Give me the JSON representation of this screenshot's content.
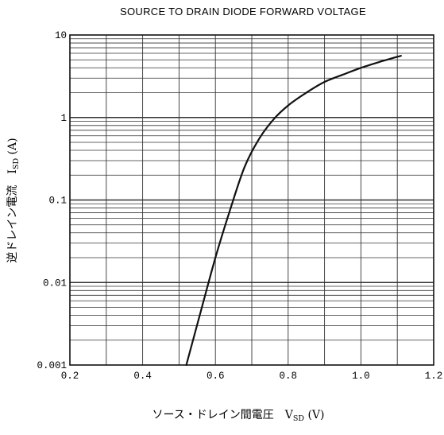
{
  "chart_data": {
    "type": "line",
    "title": "SOURCE TO DRAIN DIODE FORWARD VOLTAGE",
    "xlabel": {
      "main": "ソース・ドレイン間電圧　V",
      "sub": "SD",
      "unit": " (V)"
    },
    "ylabel": {
      "main": "逆ドレイン電流　I",
      "sub": "SD",
      "unit": " (A)"
    },
    "xlim": [
      0.2,
      1.2
    ],
    "ylim": [
      0.001,
      10
    ],
    "yscale": "log",
    "grid": true,
    "x_ticks": [
      0.2,
      0.4,
      0.6,
      0.8,
      1.0,
      1.2
    ],
    "x_tick_labels": [
      "0.2",
      "0.4",
      "0.6",
      "0.8",
      "1.0",
      "1.2"
    ],
    "y_ticks": [
      0.001,
      0.01,
      0.1,
      1,
      10
    ],
    "y_tick_labels": [
      "0.001",
      "0.01",
      "0.1",
      "1",
      "10"
    ],
    "series": [
      {
        "x": [
          0.52,
          0.56,
          0.6,
          0.64,
          0.68,
          0.72,
          0.76,
          0.8,
          0.85,
          0.9,
          0.95,
          1.0,
          1.05,
          1.11
        ],
        "y": [
          0.001,
          0.0045,
          0.02,
          0.075,
          0.25,
          0.55,
          0.95,
          1.4,
          2.0,
          2.7,
          3.3,
          4.0,
          4.7,
          5.6
        ]
      }
    ]
  }
}
